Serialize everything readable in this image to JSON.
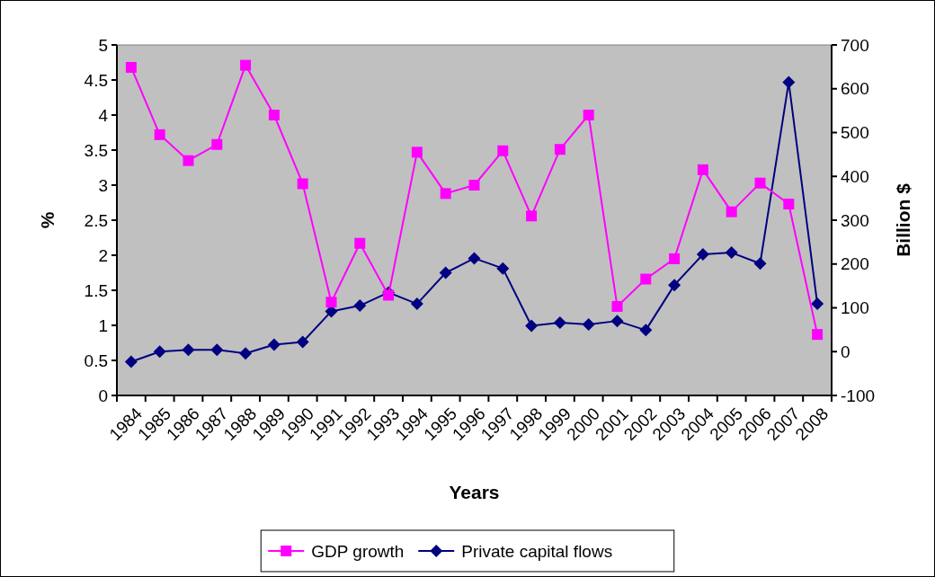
{
  "chart_data": {
    "type": "line",
    "xlabel": "Years",
    "ylabel": "%",
    "y2label": "Billion $",
    "categories": [
      "1984",
      "1985",
      "1986",
      "1987",
      "1988",
      "1989",
      "1990",
      "1991",
      "1992",
      "1993",
      "1994",
      "1995",
      "1996",
      "1997",
      "1998",
      "1999",
      "2000",
      "2001",
      "2002",
      "2003",
      "2004",
      "2005",
      "2006",
      "2007",
      "2008"
    ],
    "series": [
      {
        "name": "GDP growth",
        "color": "#ff00ff",
        "marker": "square",
        "values": [
          4.68,
          3.72,
          3.35,
          3.58,
          4.71,
          4.0,
          3.02,
          1.33,
          2.17,
          1.43,
          3.47,
          2.88,
          3.0,
          3.49,
          2.56,
          3.51,
          4.0,
          1.27,
          1.66,
          1.95,
          3.22,
          2.62,
          3.03,
          2.73,
          0.87
        ]
      },
      {
        "name": "Private capital flows",
        "color": "#000080",
        "marker": "diamond",
        "axis": "y2",
        "values": [
          -23,
          0,
          4,
          4,
          -4,
          16,
          22,
          92,
          105,
          135,
          109,
          180,
          213,
          190,
          59,
          66,
          62,
          70,
          49,
          152,
          222,
          226,
          201,
          615,
          109
        ]
      }
    ],
    "ylim": [
      0,
      5
    ],
    "yticks": [
      0,
      0.5,
      1,
      1.5,
      2,
      2.5,
      3,
      3.5,
      4,
      4.5,
      5
    ],
    "y2lim": [
      -100,
      700
    ],
    "y2ticks": [
      -100,
      0,
      100,
      200,
      300,
      400,
      500,
      600,
      700
    ],
    "legend": "bottom",
    "grid": false
  }
}
